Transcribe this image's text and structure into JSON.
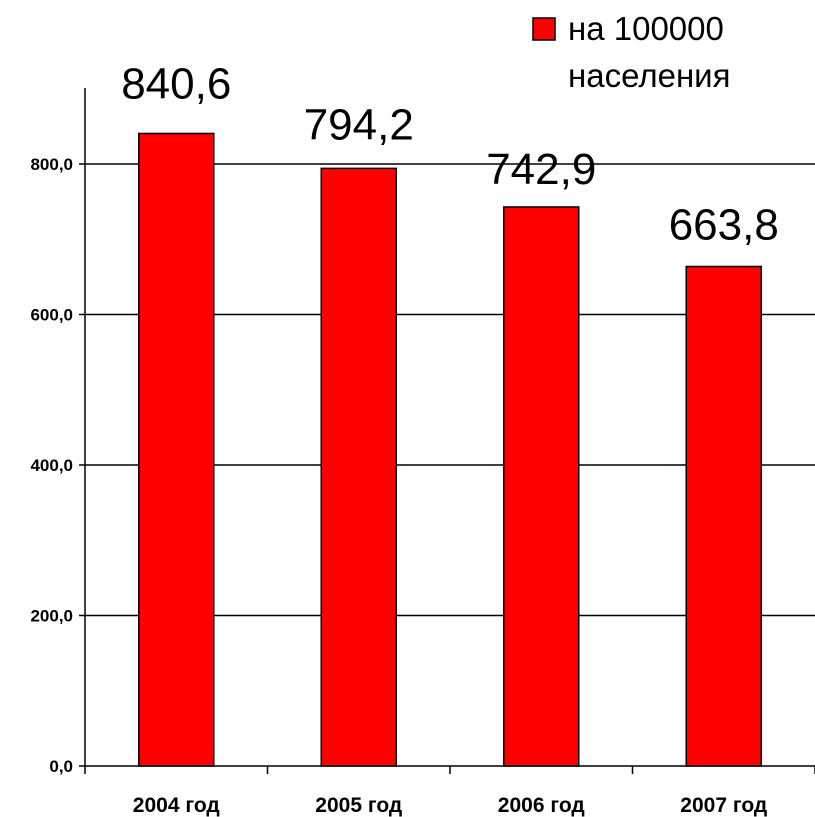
{
  "chart_data": {
    "type": "bar",
    "categories": [
      "2004 год",
      "2005 год",
      "2006 год",
      "2007 год"
    ],
    "series": [
      {
        "name": "на 100000 населения",
        "values": [
          840.6,
          794.2,
          742.9,
          663.8
        ],
        "color": "#ff0000"
      }
    ],
    "data_labels": [
      "840,6",
      "794,2",
      "742,9",
      "663,8"
    ],
    "y_ticks": [
      0,
      200,
      400,
      600,
      800
    ],
    "y_tick_labels": [
      "0,0",
      "200,0",
      "400,0",
      "600,0",
      "800,0"
    ],
    "ylim": [
      0,
      900
    ],
    "title": "",
    "xlabel": "",
    "ylabel": "",
    "grid": true,
    "legend": {
      "position": "top-right",
      "lines": [
        "на 100000",
        "населения"
      ]
    }
  }
}
